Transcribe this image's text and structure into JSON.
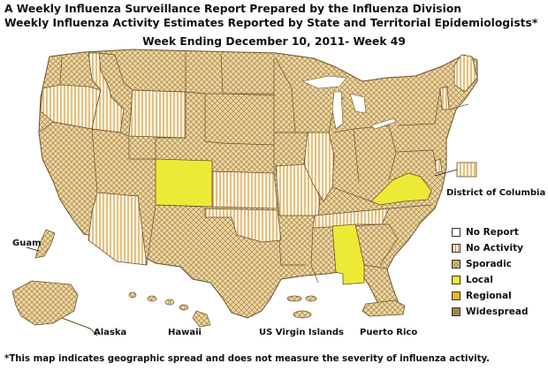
{
  "title_line1": "A Weekly Influenza Surveillance Report Prepared by the Influenza Division",
  "title_line2": "Weekly Influenza Activity Estimates Reported by State and Territorial Epidemiologists*",
  "week": "Week Ending December 10, 2011- Week 49",
  "labels": {
    "dc": "District of Columbia",
    "guam": "Guam",
    "alaska": "Alaska",
    "hawaii": "Hawaii",
    "usvi": "US Virgin Islands",
    "pr": "Puerto Rico"
  },
  "legend": [
    {
      "label": "No Report",
      "level": "no-report",
      "color": "#ffffff"
    },
    {
      "label": "No Activity",
      "level": "no-activity",
      "color": "#fff7d9"
    },
    {
      "label": "Sporadic",
      "level": "sporadic",
      "color": "#e8d3a0"
    },
    {
      "label": "Local",
      "level": "local",
      "color": "#ecea36"
    },
    {
      "label": "Regional",
      "level": "regional",
      "color": "#f1b422"
    },
    {
      "label": "Widespread",
      "level": "widespread",
      "color": "#9e8452"
    }
  ],
  "activity": {
    "local": [
      "Colorado",
      "Virginia",
      "Alabama"
    ],
    "no_activity": [
      "Oregon",
      "Idaho",
      "Wyoming",
      "Kansas",
      "Oklahoma",
      "Missouri",
      "Illinois",
      "Delaware",
      "Maine",
      "Vermont",
      "Tennessee",
      "Arizona",
      "District of Columbia"
    ],
    "sporadic_other_states": true
  },
  "footnote": "*This map indicates geographic spread and does not measure the severity of influenza activity."
}
